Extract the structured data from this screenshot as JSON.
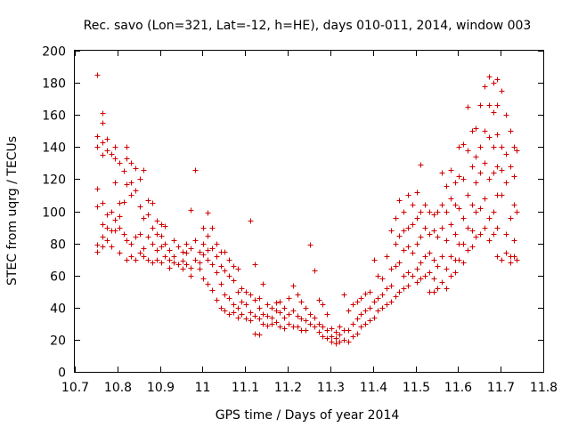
{
  "chart_data": {
    "type": "scatter",
    "title": "Rec. savo (Lon=321, Lat=-12, h=HE), days 010-011, 2014, window 003",
    "xlabel": "GPS time / Days of year 2014",
    "ylabel": "STEC from uqrg / TECUs",
    "xlim": [
      10.7,
      11.8
    ],
    "ylim": [
      0,
      200
    ],
    "xticks": [
      10.7,
      10.8,
      10.9,
      11,
      11.1,
      11.2,
      11.3,
      11.4,
      11.5,
      11.6,
      11.7,
      11.8
    ],
    "xtick_labels": [
      "10.7",
      "10.8",
      "10.9",
      "11",
      "11.1",
      "11.2",
      "11.3",
      "11.4",
      "11.5",
      "11.6",
      "11.7",
      "11.8"
    ],
    "yticks": [
      0,
      20,
      40,
      60,
      80,
      100,
      120,
      140,
      160,
      180,
      200
    ],
    "ytick_labels": [
      "0",
      "20",
      "40",
      "60",
      "80",
      "100",
      "120",
      "140",
      "160",
      "180",
      "200"
    ],
    "grid": false,
    "marker": "+",
    "color": "#d00000",
    "points": [
      [
        10.752,
        185
      ],
      [
        10.752,
        147
      ],
      [
        10.752,
        140
      ],
      [
        10.752,
        114
      ],
      [
        10.752,
        103
      ],
      [
        10.752,
        79
      ],
      [
        10.752,
        75
      ],
      [
        10.765,
        161
      ],
      [
        10.765,
        155
      ],
      [
        10.765,
        143
      ],
      [
        10.765,
        135
      ],
      [
        10.765,
        105
      ],
      [
        10.765,
        92
      ],
      [
        10.765,
        84
      ],
      [
        10.765,
        78
      ],
      [
        10.775,
        145
      ],
      [
        10.775,
        138
      ],
      [
        10.775,
        98
      ],
      [
        10.775,
        90
      ],
      [
        10.775,
        82
      ],
      [
        10.785,
        136
      ],
      [
        10.785,
        100
      ],
      [
        10.785,
        88
      ],
      [
        10.785,
        78
      ],
      [
        10.795,
        140
      ],
      [
        10.795,
        133
      ],
      [
        10.795,
        118
      ],
      [
        10.795,
        95
      ],
      [
        10.795,
        88
      ],
      [
        10.805,
        130
      ],
      [
        10.805,
        105
      ],
      [
        10.805,
        97
      ],
      [
        10.805,
        90
      ],
      [
        10.805,
        74
      ],
      [
        10.815,
        125
      ],
      [
        10.815,
        106
      ],
      [
        10.815,
        86
      ],
      [
        10.822,
        140
      ],
      [
        10.822,
        133
      ],
      [
        10.822,
        117
      ],
      [
        10.822,
        82
      ],
      [
        10.822,
        70
      ],
      [
        10.832,
        130
      ],
      [
        10.832,
        118
      ],
      [
        10.832,
        110
      ],
      [
        10.832,
        80
      ],
      [
        10.832,
        72
      ],
      [
        10.842,
        127
      ],
      [
        10.842,
        113
      ],
      [
        10.842,
        84
      ],
      [
        10.842,
        70
      ],
      [
        10.852,
        120
      ],
      [
        10.852,
        103
      ],
      [
        10.852,
        86
      ],
      [
        10.852,
        74
      ],
      [
        10.862,
        126
      ],
      [
        10.862,
        96
      ],
      [
        10.862,
        77
      ],
      [
        10.862,
        72
      ],
      [
        10.872,
        107
      ],
      [
        10.872,
        98
      ],
      [
        10.872,
        84
      ],
      [
        10.872,
        70
      ],
      [
        10.882,
        105
      ],
      [
        10.882,
        90
      ],
      [
        10.882,
        80
      ],
      [
        10.882,
        68
      ],
      [
        10.892,
        94
      ],
      [
        10.892,
        86
      ],
      [
        10.892,
        76
      ],
      [
        10.892,
        70
      ],
      [
        10.902,
        92
      ],
      [
        10.902,
        85
      ],
      [
        10.902,
        78
      ],
      [
        10.902,
        68
      ],
      [
        10.912,
        91
      ],
      [
        10.912,
        80
      ],
      [
        10.912,
        72
      ],
      [
        10.922,
        76
      ],
      [
        10.922,
        70
      ],
      [
        10.922,
        65
      ],
      [
        10.932,
        82
      ],
      [
        10.932,
        72
      ],
      [
        10.932,
        68
      ],
      [
        10.942,
        78
      ],
      [
        10.942,
        67
      ],
      [
        10.952,
        75
      ],
      [
        10.952,
        69
      ],
      [
        10.952,
        64
      ],
      [
        10.962,
        80
      ],
      [
        10.962,
        74
      ],
      [
        10.962,
        67
      ],
      [
        10.972,
        101
      ],
      [
        10.972,
        77
      ],
      [
        10.972,
        65
      ],
      [
        10.972,
        60
      ],
      [
        10.982,
        126
      ],
      [
        10.982,
        82
      ],
      [
        10.982,
        70
      ],
      [
        10.992,
        75
      ],
      [
        10.992,
        68
      ],
      [
        10.992,
        64
      ],
      [
        11.002,
        90
      ],
      [
        11.002,
        80
      ],
      [
        11.002,
        73
      ],
      [
        11.002,
        58
      ],
      [
        11.012,
        99
      ],
      [
        11.012,
        85
      ],
      [
        11.012,
        76
      ],
      [
        11.012,
        70
      ],
      [
        11.012,
        55
      ],
      [
        11.022,
        90
      ],
      [
        11.022,
        77
      ],
      [
        11.022,
        67
      ],
      [
        11.022,
        51
      ],
      [
        11.032,
        80
      ],
      [
        11.032,
        72
      ],
      [
        11.032,
        62
      ],
      [
        11.032,
        45
      ],
      [
        11.042,
        75
      ],
      [
        11.042,
        66
      ],
      [
        11.042,
        55
      ],
      [
        11.042,
        40
      ],
      [
        11.052,
        75
      ],
      [
        11.052,
        63
      ],
      [
        11.052,
        48
      ],
      [
        11.052,
        38
      ],
      [
        11.062,
        70
      ],
      [
        11.062,
        60
      ],
      [
        11.062,
        46
      ],
      [
        11.062,
        36
      ],
      [
        11.072,
        66
      ],
      [
        11.072,
        57
      ],
      [
        11.072,
        42
      ],
      [
        11.072,
        37
      ],
      [
        11.082,
        64
      ],
      [
        11.082,
        50
      ],
      [
        11.082,
        40
      ],
      [
        11.082,
        34
      ],
      [
        11.092,
        52
      ],
      [
        11.092,
        44
      ],
      [
        11.092,
        36
      ],
      [
        11.102,
        50
      ],
      [
        11.102,
        42
      ],
      [
        11.102,
        33
      ],
      [
        11.112,
        94
      ],
      [
        11.112,
        48
      ],
      [
        11.112,
        37
      ],
      [
        11.112,
        32
      ],
      [
        11.122,
        67
      ],
      [
        11.122,
        45
      ],
      [
        11.122,
        35
      ],
      [
        11.122,
        24
      ],
      [
        11.132,
        46
      ],
      [
        11.132,
        40
      ],
      [
        11.132,
        33
      ],
      [
        11.132,
        23
      ],
      [
        11.142,
        55
      ],
      [
        11.142,
        36
      ],
      [
        11.142,
        30
      ],
      [
        11.152,
        42
      ],
      [
        11.152,
        35
      ],
      [
        11.152,
        29
      ],
      [
        11.162,
        40
      ],
      [
        11.162,
        34
      ],
      [
        11.162,
        30
      ],
      [
        11.172,
        43
      ],
      [
        11.172,
        38
      ],
      [
        11.172,
        31
      ],
      [
        11.182,
        44
      ],
      [
        11.182,
        37
      ],
      [
        11.182,
        28
      ],
      [
        11.192,
        40
      ],
      [
        11.192,
        34
      ],
      [
        11.192,
        27
      ],
      [
        11.202,
        46
      ],
      [
        11.202,
        36
      ],
      [
        11.202,
        30
      ],
      [
        11.212,
        54
      ],
      [
        11.212,
        38
      ],
      [
        11.212,
        28
      ],
      [
        11.222,
        48
      ],
      [
        11.222,
        35
      ],
      [
        11.222,
        28
      ],
      [
        11.232,
        44
      ],
      [
        11.232,
        33
      ],
      [
        11.232,
        26
      ],
      [
        11.242,
        40
      ],
      [
        11.242,
        32
      ],
      [
        11.242,
        26
      ],
      [
        11.252,
        79
      ],
      [
        11.252,
        36
      ],
      [
        11.252,
        30
      ],
      [
        11.262,
        63
      ],
      [
        11.262,
        34
      ],
      [
        11.262,
        28
      ],
      [
        11.272,
        45
      ],
      [
        11.272,
        30
      ],
      [
        11.272,
        25
      ],
      [
        11.282,
        42
      ],
      [
        11.282,
        28
      ],
      [
        11.282,
        22
      ],
      [
        11.292,
        36
      ],
      [
        11.292,
        26
      ],
      [
        11.292,
        21
      ],
      [
        11.302,
        27
      ],
      [
        11.302,
        22
      ],
      [
        11.302,
        19
      ],
      [
        11.312,
        25
      ],
      [
        11.312,
        21
      ],
      [
        11.312,
        18
      ],
      [
        11.322,
        28
      ],
      [
        11.322,
        23
      ],
      [
        11.322,
        19
      ],
      [
        11.332,
        48
      ],
      [
        11.332,
        26
      ],
      [
        11.332,
        20
      ],
      [
        11.342,
        38
      ],
      [
        11.342,
        26
      ],
      [
        11.342,
        19
      ],
      [
        11.352,
        42
      ],
      [
        11.352,
        30
      ],
      [
        11.352,
        22
      ],
      [
        11.362,
        44
      ],
      [
        11.362,
        33
      ],
      [
        11.362,
        24
      ],
      [
        11.372,
        46
      ],
      [
        11.372,
        36
      ],
      [
        11.372,
        28
      ],
      [
        11.382,
        49
      ],
      [
        11.382,
        38
      ],
      [
        11.382,
        30
      ],
      [
        11.392,
        50
      ],
      [
        11.392,
        40
      ],
      [
        11.392,
        32
      ],
      [
        11.402,
        70
      ],
      [
        11.402,
        44
      ],
      [
        11.402,
        34
      ],
      [
        11.412,
        60
      ],
      [
        11.412,
        46
      ],
      [
        11.412,
        38
      ],
      [
        11.422,
        58
      ],
      [
        11.422,
        48
      ],
      [
        11.422,
        40
      ],
      [
        11.432,
        72
      ],
      [
        11.432,
        52
      ],
      [
        11.432,
        42
      ],
      [
        11.442,
        88
      ],
      [
        11.442,
        64
      ],
      [
        11.442,
        54
      ],
      [
        11.442,
        44
      ],
      [
        11.452,
        96
      ],
      [
        11.452,
        80
      ],
      [
        11.452,
        66
      ],
      [
        11.452,
        47
      ],
      [
        11.462,
        107
      ],
      [
        11.462,
        85
      ],
      [
        11.462,
        68
      ],
      [
        11.462,
        50
      ],
      [
        11.472,
        100
      ],
      [
        11.472,
        88
      ],
      [
        11.472,
        76
      ],
      [
        11.472,
        60
      ],
      [
        11.472,
        52
      ],
      [
        11.482,
        110
      ],
      [
        11.482,
        90
      ],
      [
        11.482,
        78
      ],
      [
        11.482,
        62
      ],
      [
        11.482,
        54
      ],
      [
        11.492,
        104
      ],
      [
        11.492,
        92
      ],
      [
        11.492,
        74
      ],
      [
        11.492,
        60
      ],
      [
        11.502,
        112
      ],
      [
        11.502,
        96
      ],
      [
        11.502,
        80
      ],
      [
        11.502,
        64
      ],
      [
        11.502,
        56
      ],
      [
        11.512,
        129
      ],
      [
        11.512,
        100
      ],
      [
        11.512,
        84
      ],
      [
        11.512,
        68
      ],
      [
        11.512,
        58
      ],
      [
        11.522,
        104
      ],
      [
        11.522,
        90
      ],
      [
        11.522,
        72
      ],
      [
        11.522,
        60
      ],
      [
        11.532,
        100
      ],
      [
        11.532,
        86
      ],
      [
        11.532,
        74
      ],
      [
        11.532,
        62
      ],
      [
        11.532,
        50
      ],
      [
        11.542,
        98
      ],
      [
        11.542,
        88
      ],
      [
        11.542,
        70
      ],
      [
        11.542,
        58
      ],
      [
        11.542,
        50
      ],
      [
        11.552,
        100
      ],
      [
        11.552,
        84
      ],
      [
        11.552,
        66
      ],
      [
        11.552,
        52
      ],
      [
        11.562,
        124
      ],
      [
        11.562,
        104
      ],
      [
        11.562,
        90
      ],
      [
        11.562,
        72
      ],
      [
        11.562,
        56
      ],
      [
        11.572,
        116
      ],
      [
        11.572,
        100
      ],
      [
        11.572,
        82
      ],
      [
        11.572,
        64
      ],
      [
        11.572,
        52
      ],
      [
        11.582,
        126
      ],
      [
        11.582,
        108
      ],
      [
        11.582,
        92
      ],
      [
        11.582,
        72
      ],
      [
        11.582,
        60
      ],
      [
        11.592,
        118
      ],
      [
        11.592,
        104
      ],
      [
        11.592,
        86
      ],
      [
        11.592,
        70
      ],
      [
        11.592,
        62
      ],
      [
        11.602,
        140
      ],
      [
        11.602,
        122
      ],
      [
        11.602,
        102
      ],
      [
        11.602,
        80
      ],
      [
        11.602,
        70
      ],
      [
        11.612,
        142
      ],
      [
        11.612,
        120
      ],
      [
        11.612,
        96
      ],
      [
        11.612,
        80
      ],
      [
        11.612,
        68
      ],
      [
        11.622,
        165
      ],
      [
        11.622,
        138
      ],
      [
        11.622,
        110
      ],
      [
        11.622,
        90
      ],
      [
        11.622,
        76
      ],
      [
        11.632,
        150
      ],
      [
        11.632,
        128
      ],
      [
        11.632,
        104
      ],
      [
        11.632,
        88
      ],
      [
        11.632,
        78
      ],
      [
        11.642,
        152
      ],
      [
        11.642,
        134
      ],
      [
        11.642,
        118
      ],
      [
        11.642,
        100
      ],
      [
        11.642,
        84
      ],
      [
        11.652,
        166
      ],
      [
        11.652,
        140
      ],
      [
        11.652,
        124
      ],
      [
        11.652,
        102
      ],
      [
        11.652,
        86
      ],
      [
        11.662,
        178
      ],
      [
        11.662,
        150
      ],
      [
        11.662,
        130
      ],
      [
        11.662,
        108
      ],
      [
        11.662,
        90
      ],
      [
        11.672,
        184
      ],
      [
        11.672,
        166
      ],
      [
        11.672,
        146
      ],
      [
        11.672,
        120
      ],
      [
        11.672,
        96
      ],
      [
        11.672,
        82
      ],
      [
        11.682,
        180
      ],
      [
        11.682,
        162
      ],
      [
        11.682,
        140
      ],
      [
        11.682,
        124
      ],
      [
        11.682,
        100
      ],
      [
        11.682,
        86
      ],
      [
        11.692,
        182
      ],
      [
        11.692,
        166
      ],
      [
        11.692,
        148
      ],
      [
        11.692,
        128
      ],
      [
        11.692,
        110
      ],
      [
        11.692,
        90
      ],
      [
        11.692,
        72
      ],
      [
        11.702,
        175
      ],
      [
        11.702,
        140
      ],
      [
        11.702,
        126
      ],
      [
        11.702,
        110
      ],
      [
        11.702,
        70
      ],
      [
        11.712,
        160
      ],
      [
        11.712,
        136
      ],
      [
        11.712,
        118
      ],
      [
        11.712,
        86
      ],
      [
        11.712,
        74
      ],
      [
        11.722,
        150
      ],
      [
        11.722,
        128
      ],
      [
        11.722,
        96
      ],
      [
        11.722,
        72
      ],
      [
        11.722,
        68
      ],
      [
        11.732,
        140
      ],
      [
        11.732,
        122
      ],
      [
        11.732,
        104
      ],
      [
        11.732,
        82
      ],
      [
        11.732,
        72
      ],
      [
        11.738,
        138
      ],
      [
        11.738,
        100
      ],
      [
        11.738,
        70
      ]
    ]
  }
}
